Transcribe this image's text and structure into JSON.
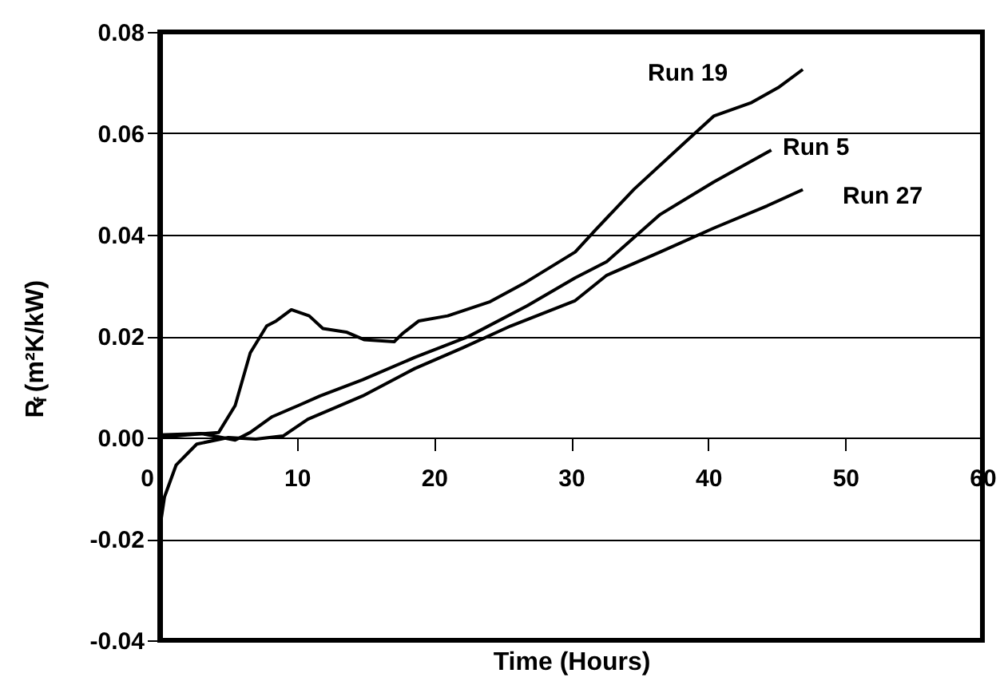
{
  "chart_data": {
    "type": "line",
    "xlabel": "Time (Hours)",
    "ylabel": "R$_{f}$ (m²K/kW)",
    "xlim": [
      0,
      60
    ],
    "xticks": [
      0,
      10,
      20,
      30,
      40,
      50,
      60
    ],
    "ylim": [
      -0.04,
      0.08
    ],
    "yticks": [
      {
        "value": -0.04,
        "label": "-0.04"
      },
      {
        "value": -0.02,
        "label": "-0.02"
      },
      {
        "value": 0.0,
        "label": "0.00"
      },
      {
        "value": 0.02,
        "label": "0.02"
      },
      {
        "value": 0.04,
        "label": "0.04"
      },
      {
        "value": 0.06,
        "label": "0.06"
      },
      {
        "value": 0.08,
        "label": "0.08"
      }
    ],
    "grid": "y",
    "marker": "none",
    "line_style": "solid",
    "legend": false,
    "series": [
      {
        "name": "Run 19",
        "color": "#000000",
        "x": [
          0,
          2,
          4.3,
          5.5,
          6.6,
          7.8,
          8.5,
          9.6,
          10.9,
          11.9,
          13.6,
          14.9,
          17.1,
          17.7,
          18.9,
          21,
          24.1,
          26.5,
          30.3,
          31.8,
          34.6,
          38.5,
          40.4,
          43.1,
          45.1,
          46.9
        ],
        "values": [
          0.0,
          0.0005,
          0.001,
          0.0063,
          0.0167,
          0.022,
          0.023,
          0.0252,
          0.024,
          0.0215,
          0.0208,
          0.0193,
          0.0189,
          0.0205,
          0.023,
          0.024,
          0.0268,
          0.0303,
          0.0366,
          0.041,
          0.049,
          0.0587,
          0.0634,
          0.066,
          0.069,
          0.0726
        ]
      },
      {
        "name": "Run 5",
        "color": "#000000",
        "x": [
          0,
          3,
          5.5,
          6.6,
          8.2,
          10.1,
          11.7,
          14.8,
          18.6,
          22.5,
          26.8,
          30.3,
          32.6,
          36.5,
          40.4,
          44.6
        ],
        "values": [
          0.0005,
          0.0008,
          -0.0005,
          0.001,
          0.0041,
          0.0063,
          0.0082,
          0.0114,
          0.0158,
          0.0199,
          0.026,
          0.0315,
          0.0347,
          0.044,
          0.0504,
          0.0567
        ]
      },
      {
        "name": "Run 27",
        "color": "#000000",
        "x": [
          0,
          0.35,
          1.2,
          2.7,
          5,
          7,
          9,
          10.8,
          14.8,
          18.6,
          22.1,
          25.6,
          30.3,
          32.6,
          36.5,
          40.4,
          44.3,
          46.9
        ],
        "values": [
          -0.018,
          -0.0117,
          -0.0054,
          -0.0013,
          0.0,
          -0.0003,
          0.0003,
          0.0036,
          0.0082,
          0.0136,
          0.0177,
          0.022,
          0.027,
          0.032,
          0.0366,
          0.0413,
          0.0457,
          0.0489
        ]
      }
    ]
  }
}
